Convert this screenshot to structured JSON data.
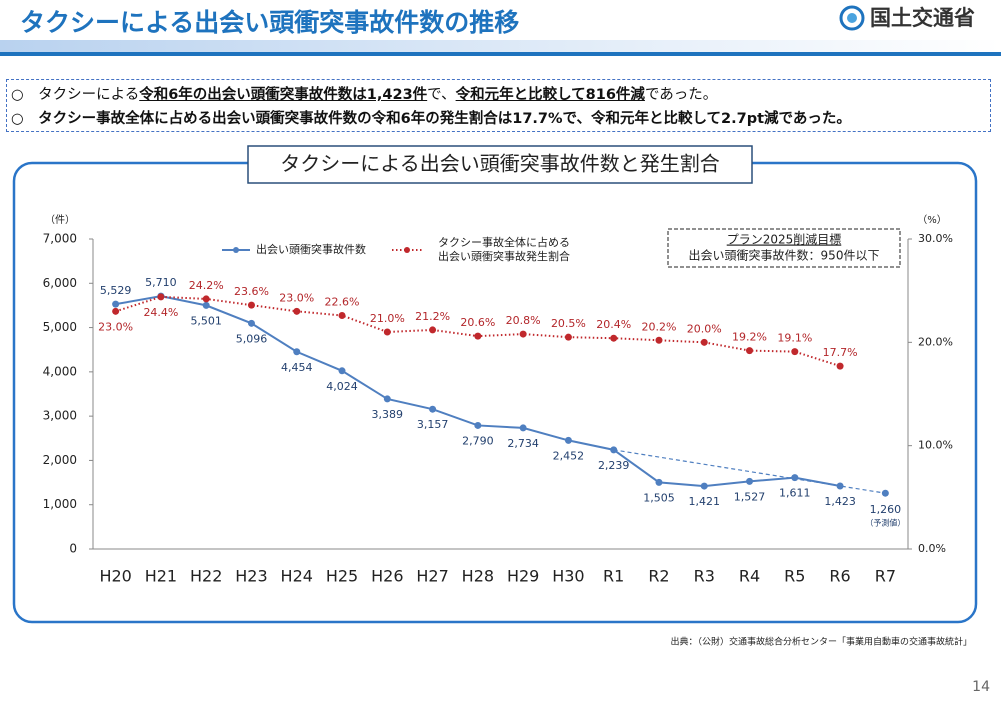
{
  "header": {
    "title": "タクシーによる出会い頭衝突事故件数の推移",
    "logo": "国土交通省"
  },
  "bullets": [
    [
      {
        "text": "○　タクシーによる"
      },
      {
        "text": "令和6年の出会い頭衝突事故件数は1,423件",
        "emphasis": true
      },
      {
        "text": "で、"
      },
      {
        "text": "令和元年と比較して816件減",
        "emphasis": true
      },
      {
        "text": "であった。"
      }
    ],
    [
      {
        "text": "○　タクシー事故全体に占める出会い頭衝突事故件数の令和6年の発生割合は17.7%で、令和元年と比較して2.7pt減であった。"
      }
    ]
  ],
  "chart_data": {
    "type": "line",
    "title": "タクシーによる出会い頭衝突事故件数と発生割合",
    "y_unit": "（件）",
    "y2_unit": "（%）",
    "categories": [
      "H20",
      "H21",
      "H22",
      "H23",
      "H24",
      "H25",
      "H26",
      "H27",
      "H28",
      "H29",
      "H30",
      "R1",
      "R2",
      "R3",
      "R4",
      "R5",
      "R6",
      "R7"
    ],
    "series": [
      {
        "name": "出会い頭衝突事故件数",
        "color": "#4f7fc0",
        "values": [
          5529,
          5710,
          5501,
          5096,
          4454,
          4024,
          3389,
          3157,
          2790,
          2734,
          2452,
          2239,
          1505,
          1421,
          1527,
          1611,
          1423,
          null
        ],
        "value_labels": [
          "5,529",
          "5,710",
          "5,501",
          "5,096",
          "4,454",
          "4,024",
          "3,389",
          "3,157",
          "2,790",
          "2,734",
          "2,452",
          "2,239",
          "1,505",
          "1,421",
          "1,527",
          "1,611",
          "1,423",
          null
        ]
      },
      {
        "name": "タクシー事故全体に占める出会い頭衝突事故発生割合",
        "color": "#c0282c",
        "axis": "y2",
        "values": [
          23.0,
          24.4,
          24.2,
          23.6,
          23.0,
          22.6,
          21.0,
          21.2,
          20.6,
          20.8,
          20.5,
          20.4,
          20.2,
          20.0,
          19.2,
          19.1,
          17.7,
          null
        ],
        "value_labels": [
          "23.0%",
          "24.4%",
          "24.2%",
          "23.6%",
          "23.0%",
          "22.6%",
          "21.0%",
          "21.2%",
          "20.6%",
          "20.8%",
          "20.5%",
          "20.4%",
          "20.2%",
          "20.0%",
          "19.2%",
          "19.1%",
          "17.7%",
          null
        ]
      }
    ],
    "forecast": {
      "category": "R7",
      "value": 1260,
      "value_label": "1,260",
      "label": "（予測値）",
      "from": "R1"
    },
    "target_box": {
      "title": "プラン2025削減目標",
      "text": "出会い頭衝突事故件数：950件以下"
    },
    "ylim": [
      0,
      7000
    ],
    "yticks": [
      0,
      {
        "value": 1000,
        "label": "1,000"
      },
      {
        "value": 2000,
        "label": "2,000"
      },
      {
        "value": 3000,
        "label": "3,000"
      },
      {
        "value": 4000,
        "label": "4,000"
      },
      {
        "value": 5000,
        "label": "5,000"
      },
      {
        "value": 6000,
        "label": "6,000"
      },
      {
        "value": 7000,
        "label": "7,000"
      }
    ],
    "y2lim": [
      0,
      30
    ],
    "y2ticks": [
      {
        "value": 0,
        "label": "0.0%"
      },
      {
        "value": 10,
        "label": "10.0%"
      },
      {
        "value": 20,
        "label": "20.0%"
      },
      {
        "value": 30,
        "label": "30.0%"
      }
    ],
    "grid": false
  },
  "source": "出典：（公財）交通事故総合分析センター「事業用自動車の交通事故統計」",
  "page_number": "14"
}
